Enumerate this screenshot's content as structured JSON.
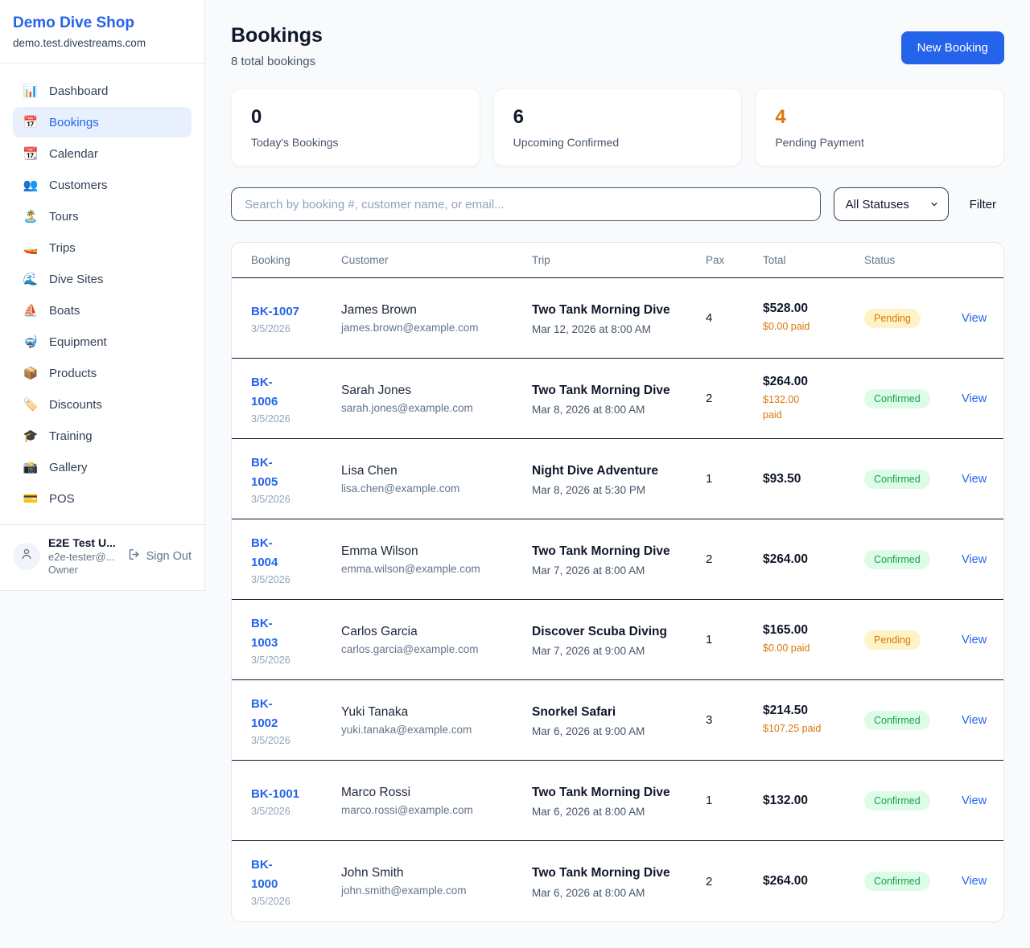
{
  "sidebar": {
    "brand": "Demo Dive Shop",
    "domain": "demo.test.divestreams.com",
    "items": [
      {
        "label": "Dashboard",
        "icon": "📊",
        "icon_name": "bar-chart-icon",
        "active": false
      },
      {
        "label": "Bookings",
        "icon": "📅",
        "icon_name": "calendar-icon",
        "active": true
      },
      {
        "label": "Calendar",
        "icon": "📆",
        "icon_name": "tearoff-calendar-icon",
        "active": false
      },
      {
        "label": "Customers",
        "icon": "👥",
        "icon_name": "people-icon",
        "active": false
      },
      {
        "label": "Tours",
        "icon": "🏝️",
        "icon_name": "island-icon",
        "active": false
      },
      {
        "label": "Trips",
        "icon": "🚤",
        "icon_name": "speedboat-icon",
        "active": false
      },
      {
        "label": "Dive Sites",
        "icon": "🌊",
        "icon_name": "wave-icon",
        "active": false
      },
      {
        "label": "Boats",
        "icon": "⛵",
        "icon_name": "sailboat-icon",
        "active": false
      },
      {
        "label": "Equipment",
        "icon": "🤿",
        "icon_name": "diving-mask-icon",
        "active": false
      },
      {
        "label": "Products",
        "icon": "📦",
        "icon_name": "package-icon",
        "active": false
      },
      {
        "label": "Discounts",
        "icon": "🏷️",
        "icon_name": "tag-icon",
        "active": false
      },
      {
        "label": "Training",
        "icon": "🎓",
        "icon_name": "graduation-cap-icon",
        "active": false
      },
      {
        "label": "Gallery",
        "icon": "📸",
        "icon_name": "camera-icon",
        "active": false
      },
      {
        "label": "POS",
        "icon": "💳",
        "icon_name": "credit-card-icon",
        "active": false
      }
    ],
    "user": {
      "name": "E2E Test U...",
      "email": "e2e-tester@...",
      "role": "Owner",
      "sign_out": "Sign Out"
    }
  },
  "header": {
    "title": "Bookings",
    "subtitle": "8 total bookings",
    "new_booking_label": "New Booking"
  },
  "stats": [
    {
      "value": "0",
      "label": "Today's Bookings",
      "accent": false
    },
    {
      "value": "6",
      "label": "Upcoming Confirmed",
      "accent": false
    },
    {
      "value": "4",
      "label": "Pending Payment",
      "accent": true
    }
  ],
  "controls": {
    "search_placeholder": "Search by booking #, customer name, or email...",
    "status_filter_value": "All Statuses",
    "filter_label": "Filter"
  },
  "table": {
    "columns": [
      "Booking",
      "Customer",
      "Trip",
      "Pax",
      "Total",
      "Status"
    ],
    "view_label": "View",
    "rows": [
      {
        "id": "BK-1007",
        "id_wrapped": false,
        "date": "3/5/2026",
        "customer_name": "James Brown",
        "customer_email": "james.brown@example.com",
        "trip_name": "Two Tank Morning Dive",
        "trip_datetime": "Mar 12, 2026 at 8:00 AM",
        "pax": "4",
        "total": "$528.00",
        "paid": "$0.00 paid",
        "paid_wrapped": false,
        "status": "Pending"
      },
      {
        "id": "BK-1006",
        "id_wrapped": true,
        "date": "3/5/2026",
        "customer_name": "Sarah Jones",
        "customer_email": "sarah.jones@example.com",
        "trip_name": "Two Tank Morning Dive",
        "trip_datetime": "Mar 8, 2026 at 8:00 AM",
        "pax": "2",
        "total": "$264.00",
        "paid": "$132.00 paid",
        "paid_wrapped": true,
        "status": "Confirmed"
      },
      {
        "id": "BK-1005",
        "id_wrapped": true,
        "date": "3/5/2026",
        "customer_name": "Lisa Chen",
        "customer_email": "lisa.chen@example.com",
        "trip_name": "Night Dive Adventure",
        "trip_datetime": "Mar 8, 2026 at 5:30 PM",
        "pax": "1",
        "total": "$93.50",
        "paid": null,
        "paid_wrapped": false,
        "status": "Confirmed"
      },
      {
        "id": "BK-1004",
        "id_wrapped": true,
        "date": "3/5/2026",
        "customer_name": "Emma Wilson",
        "customer_email": "emma.wilson@example.com",
        "trip_name": "Two Tank Morning Dive",
        "trip_datetime": "Mar 7, 2026 at 8:00 AM",
        "pax": "2",
        "total": "$264.00",
        "paid": null,
        "paid_wrapped": false,
        "status": "Confirmed"
      },
      {
        "id": "BK-1003",
        "id_wrapped": true,
        "date": "3/5/2026",
        "customer_name": "Carlos Garcia",
        "customer_email": "carlos.garcia@example.com",
        "trip_name": "Discover Scuba Diving",
        "trip_datetime": "Mar 7, 2026 at 9:00 AM",
        "pax": "1",
        "total": "$165.00",
        "paid": "$0.00 paid",
        "paid_wrapped": false,
        "status": "Pending"
      },
      {
        "id": "BK-1002",
        "id_wrapped": true,
        "date": "3/5/2026",
        "customer_name": "Yuki Tanaka",
        "customer_email": "yuki.tanaka@example.com",
        "trip_name": "Snorkel Safari",
        "trip_datetime": "Mar 6, 2026 at 9:00 AM",
        "pax": "3",
        "total": "$214.50",
        "paid": "$107.25 paid",
        "paid_wrapped": false,
        "status": "Confirmed"
      },
      {
        "id": "BK-1001",
        "id_wrapped": false,
        "date": "3/5/2026",
        "customer_name": "Marco Rossi",
        "customer_email": "marco.rossi@example.com",
        "trip_name": "Two Tank Morning Dive",
        "trip_datetime": "Mar 6, 2026 at 8:00 AM",
        "pax": "1",
        "total": "$132.00",
        "paid": null,
        "paid_wrapped": false,
        "status": "Confirmed"
      },
      {
        "id": "BK-1000",
        "id_wrapped": true,
        "date": "3/5/2026",
        "customer_name": "John Smith",
        "customer_email": "john.smith@example.com",
        "trip_name": "Two Tank Morning Dive",
        "trip_datetime": "Mar 6, 2026 at 8:00 AM",
        "pax": "2",
        "total": "$264.00",
        "paid": null,
        "paid_wrapped": false,
        "status": "Confirmed"
      }
    ]
  },
  "colors": {
    "accent_blue": "#2563eb",
    "pending_text": "#d97706",
    "pending_bg": "#fef3c7",
    "confirmed_text": "#16a34a",
    "confirmed_bg": "#dcfce7"
  }
}
